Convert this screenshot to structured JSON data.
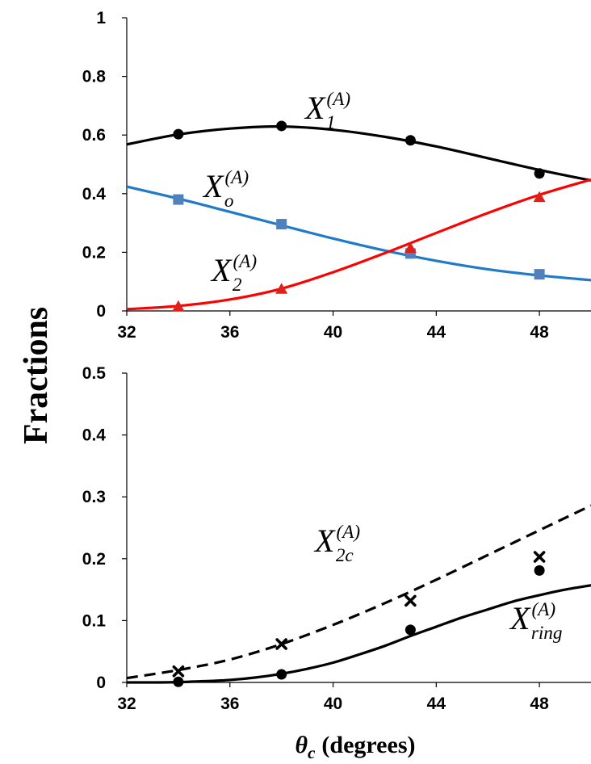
{
  "figure": {
    "ylabel": "Fractions",
    "xlabel": {
      "symbol": "θ",
      "subscript": "c",
      "unit": "(degrees)"
    }
  },
  "colors": {
    "X1": "#000000",
    "Xo": "#1f7ac8",
    "Xo_marker": "#4f81bd",
    "X2": "#ff0000",
    "X2_marker": "#e0201b",
    "X2c": "#000000",
    "Xring": "#000000"
  },
  "chart_data": [
    {
      "type": "line",
      "panel": "top",
      "title": "",
      "xlim": [
        32,
        50
      ],
      "ylim": [
        0,
        1
      ],
      "xticks": [
        "32",
        "36",
        "40",
        "44",
        "48"
      ],
      "yticks": [
        "0",
        "0.2",
        "0.4",
        "0.6",
        "0.8",
        "1"
      ],
      "grid": false,
      "legend": "none",
      "series": [
        {
          "key": "X1",
          "name": "X1(A)",
          "label": {
            "base": "X",
            "sub": "1",
            "sup": "(A)"
          },
          "style": "solid",
          "curve": {
            "x": [
              32,
              34,
              36,
              38,
              40,
              42,
              44,
              46,
              48,
              50
            ],
            "y": [
              0.568,
              0.602,
              0.622,
              0.629,
              0.618,
              0.594,
              0.561,
              0.521,
              0.481,
              0.445
            ]
          },
          "markers": {
            "shape": "circle",
            "x": [
              34,
              38,
              43,
              48
            ],
            "y": [
              0.603,
              0.631,
              0.582,
              0.469
            ]
          }
        },
        {
          "key": "Xo",
          "name": "Xo(A)",
          "label": {
            "base": "X",
            "sub": "o",
            "sup": "(A)"
          },
          "style": "solid",
          "curve": {
            "x": [
              32,
              34,
              36,
              38,
              40,
              42,
              44,
              46,
              48,
              50
            ],
            "y": [
              0.424,
              0.383,
              0.338,
              0.292,
              0.247,
              0.206,
              0.171,
              0.142,
              0.121,
              0.105
            ]
          },
          "markers": {
            "shape": "square",
            "x": [
              34,
              38,
              43,
              48
            ],
            "y": [
              0.38,
              0.296,
              0.196,
              0.125
            ]
          }
        },
        {
          "key": "X2",
          "name": "X2(A)",
          "label": {
            "base": "X",
            "sub": "2",
            "sup": "(A)"
          },
          "style": "solid",
          "curve": {
            "x": [
              32,
              34,
              36,
              38,
              40,
              42,
              44,
              46,
              48,
              50
            ],
            "y": [
              0.006,
              0.017,
              0.039,
              0.076,
              0.132,
              0.197,
              0.266,
              0.334,
              0.396,
              0.448
            ]
          },
          "markers": {
            "shape": "triangle",
            "x": [
              34,
              38,
              43,
              48
            ],
            "y": [
              0.016,
              0.075,
              0.215,
              0.388
            ]
          }
        }
      ]
    },
    {
      "type": "line",
      "panel": "bottom",
      "title": "",
      "xlim": [
        32,
        50
      ],
      "ylim": [
        0,
        0.5
      ],
      "xticks": [
        "32",
        "36",
        "40",
        "44",
        "48"
      ],
      "yticks": [
        "0",
        "0.1",
        "0.2",
        "0.3",
        "0.4",
        "0.5"
      ],
      "grid": false,
      "legend": "none",
      "series": [
        {
          "key": "X2c",
          "name": "X2c(A)",
          "label": {
            "base": "X",
            "sub": "2c",
            "sup": "(A)"
          },
          "style": "dashed",
          "curve": {
            "x": [
              32,
              34,
              36,
              38,
              40,
              42,
              44,
              46,
              48,
              50
            ],
            "y": [
              0.007,
              0.02,
              0.037,
              0.062,
              0.093,
              0.128,
              0.166,
              0.206,
              0.246,
              0.286
            ]
          },
          "markers": {
            "shape": "cross",
            "x": [
              34,
              38,
              43,
              48
            ],
            "y": [
              0.018,
              0.062,
              0.132,
              0.203
            ]
          }
        },
        {
          "key": "Xring",
          "name": "Xring(A)",
          "label": {
            "base": "X",
            "sub": "ring",
            "sup": "(A)"
          },
          "style": "solid",
          "curve": {
            "x": [
              32,
              33,
              34,
              35,
              36,
              37,
              38,
              39,
              40,
              41,
              42,
              43,
              44,
              45,
              46,
              47,
              48,
              49,
              50
            ],
            "y": [
              0,
              0,
              0.0005,
              0.002,
              0.004,
              0.008,
              0.014,
              0.022,
              0.032,
              0.045,
              0.059,
              0.075,
              0.09,
              0.105,
              0.118,
              0.131,
              0.141,
              0.15,
              0.157
            ]
          },
          "markers": {
            "shape": "circle",
            "x": [
              34,
              38,
              43,
              48
            ],
            "y": [
              0.001,
              0.013,
              0.085,
              0.181
            ]
          }
        }
      ]
    }
  ]
}
